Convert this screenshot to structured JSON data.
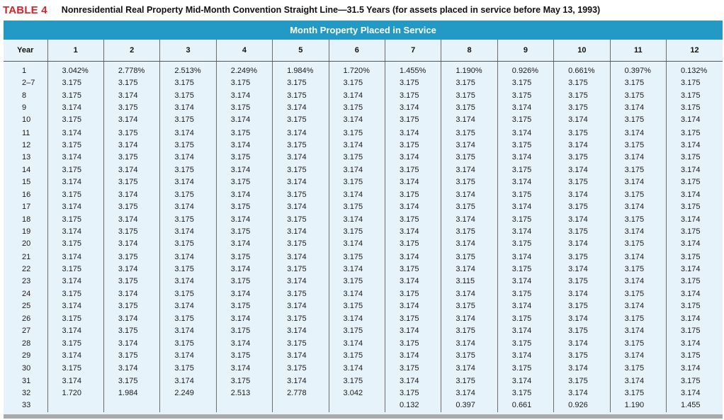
{
  "header": {
    "table_label": "TABLE 4",
    "title": "Nonresidential Real Property Mid-Month Convention Straight Line—31.5 Years (for assets placed in service before May 13, 1993)"
  },
  "table": {
    "group_header": "Month Property Placed in Service",
    "year_header": "Year",
    "columns": [
      "1",
      "2",
      "3",
      "4",
      "5",
      "6",
      "7",
      "8",
      "9",
      "10",
      "11",
      "12"
    ],
    "rows": [
      {
        "year": "1",
        "values": [
          "3.042%",
          "2.778%",
          "2.513%",
          "2.249%",
          "1.984%",
          "1.720%",
          "1.455%",
          "1.190%",
          "0.926%",
          "0.661%",
          "0.397%",
          "0.132%"
        ]
      },
      {
        "year": "2–7",
        "values": [
          "3.175",
          "3.175",
          "3.175",
          "3.175",
          "3.175",
          "3.175",
          "3.175",
          "3.175",
          "3.175",
          "3.175",
          "3.175",
          "3.175"
        ]
      },
      {
        "year": "8",
        "values": [
          "3.175",
          "3.174",
          "3.175",
          "3.174",
          "3.175",
          "3.174",
          "3.175",
          "3.175",
          "3.175",
          "3.175",
          "3.175",
          "3.175"
        ]
      },
      {
        "year": "9",
        "values": [
          "3.174",
          "3.175",
          "3.174",
          "3.175",
          "3.174",
          "3.175",
          "3.174",
          "3.175",
          "3.174",
          "3.175",
          "3.174",
          "3.175"
        ]
      },
      {
        "year": "10",
        "values": [
          "3.175",
          "3.174",
          "3.175",
          "3.174",
          "3.175",
          "3.174",
          "3.175",
          "3.174",
          "3.175",
          "3.174",
          "3.175",
          "3.174"
        ]
      },
      {
        "year": "11",
        "values": [
          "3.174",
          "3.175",
          "3.174",
          "3.175",
          "3.174",
          "3.175",
          "3.174",
          "3.175",
          "3.174",
          "3.175",
          "3.174",
          "3.175"
        ]
      },
      {
        "year": "12",
        "values": [
          "3.175",
          "3.174",
          "3.175",
          "3.174",
          "3.175",
          "3.174",
          "3.175",
          "3.174",
          "3.175",
          "3.174",
          "3.175",
          "3.174"
        ]
      },
      {
        "year": "13",
        "values": [
          "3.174",
          "3.175",
          "3.174",
          "3.175",
          "3.174",
          "3.175",
          "3.174",
          "3.175",
          "3.174",
          "3.175",
          "3.174",
          "3.175"
        ]
      },
      {
        "year": "14",
        "values": [
          "3.175",
          "3.174",
          "3.175",
          "3.174",
          "3.175",
          "3.174",
          "3.175",
          "3.174",
          "3.175",
          "3.174",
          "3.175",
          "3.174"
        ]
      },
      {
        "year": "15",
        "values": [
          "3.174",
          "3.175",
          "3.174",
          "3.175",
          "3.174",
          "3.175",
          "3.174",
          "3.175",
          "3.174",
          "3.175",
          "3.174",
          "3.175"
        ]
      },
      {
        "year": "16",
        "values": [
          "3.175",
          "3.174",
          "3.175",
          "3.174",
          "3.175",
          "3.174",
          "3.175",
          "3.174",
          "3.175",
          "3.174",
          "3.175",
          "3.174"
        ]
      },
      {
        "year": "17",
        "values": [
          "3.174",
          "3.175",
          "3.174",
          "3.175",
          "3.174",
          "3.175",
          "3.174",
          "3.175",
          "3.174",
          "3.175",
          "3.174",
          "3.175"
        ]
      },
      {
        "year": "18",
        "values": [
          "3.175",
          "3.174",
          "3.175",
          "3.174",
          "3.175",
          "3.174",
          "3.175",
          "3.174",
          "3.175",
          "3.174",
          "3.175",
          "3.174"
        ]
      },
      {
        "year": "19",
        "values": [
          "3.174",
          "3.175",
          "3.174",
          "3.175",
          "3.174",
          "3.175",
          "3.174",
          "3.175",
          "3.174",
          "3.175",
          "3.174",
          "3.175"
        ]
      },
      {
        "year": "20",
        "values": [
          "3.175",
          "3.174",
          "3.175",
          "3.174",
          "3.175",
          "3.174",
          "3.175",
          "3.174",
          "3.175",
          "3.174",
          "3.175",
          "3.174"
        ]
      },
      {
        "year": "21",
        "values": [
          "3.174",
          "3.175",
          "3.174",
          "3.175",
          "3.174",
          "3.175",
          "3.174",
          "3.175",
          "3.174",
          "3.175",
          "3.174",
          "3.175"
        ]
      },
      {
        "year": "22",
        "values": [
          "3.175",
          "3.174",
          "3.175",
          "3.174",
          "3.175",
          "3.174",
          "3.175",
          "3.174",
          "3.175",
          "3.174",
          "3.175",
          "3.174"
        ]
      },
      {
        "year": "23",
        "values": [
          "3.174",
          "3.175",
          "3.174",
          "3.175",
          "3.174",
          "3.175",
          "3.174",
          "3.115",
          "3.174",
          "3.175",
          "3.174",
          "3.175"
        ]
      },
      {
        "year": "24",
        "values": [
          "3.175",
          "3.174",
          "3.175",
          "3.174",
          "3.175",
          "3.174",
          "3.175",
          "3.174",
          "3.175",
          "3.174",
          "3.175",
          "3.174"
        ]
      },
      {
        "year": "25",
        "values": [
          "3.174",
          "3.175",
          "3.174",
          "3.175",
          "3.174",
          "3.175",
          "3.174",
          "3.175",
          "3.174",
          "3.175",
          "3.174",
          "3.175"
        ]
      },
      {
        "year": "26",
        "values": [
          "3.175",
          "3.174",
          "3.175",
          "3.174",
          "3.175",
          "3.174",
          "3.175",
          "3.174",
          "3.175",
          "3.174",
          "3.175",
          "3.174"
        ]
      },
      {
        "year": "27",
        "values": [
          "3.174",
          "3.175",
          "3.174",
          "3.175",
          "3.174",
          "3.175",
          "3.174",
          "3.175",
          "3.174",
          "3.175",
          "3.174",
          "3.175"
        ]
      },
      {
        "year": "28",
        "values": [
          "3.175",
          "3.174",
          "3.175",
          "3.174",
          "3.175",
          "3.174",
          "3.175",
          "3.174",
          "3.175",
          "3.174",
          "3.175",
          "3.174"
        ]
      },
      {
        "year": "29",
        "values": [
          "3.174",
          "3.175",
          "3.174",
          "3.175",
          "3.174",
          "3.175",
          "3.174",
          "3.175",
          "3.174",
          "3.175",
          "3.174",
          "3.175"
        ]
      },
      {
        "year": "30",
        "values": [
          "3.175",
          "3.174",
          "3.175",
          "3.174",
          "3.175",
          "3.174",
          "3.175",
          "3.174",
          "3.175",
          "3.174",
          "3.175",
          "3.174"
        ]
      },
      {
        "year": "31",
        "values": [
          "3.174",
          "3.175",
          "3.174",
          "3.175",
          "3.174",
          "3.175",
          "3.174",
          "3.175",
          "3.174",
          "3.175",
          "3.174",
          "3.175"
        ]
      },
      {
        "year": "32",
        "values": [
          "1.720",
          "1.984",
          "2.249",
          "2.513",
          "2.778",
          "3.042",
          "3.175",
          "3.174",
          "3.175",
          "3.174",
          "3.175",
          "3.174"
        ]
      },
      {
        "year": "33",
        "values": [
          "",
          "",
          "",
          "",
          "",
          "",
          "0.132",
          "0.397",
          "0.661",
          "0.926",
          "1.190",
          "1.455"
        ]
      }
    ]
  },
  "colors": {
    "label_red": "#d2232a",
    "header_blue": "#2399c6",
    "panel_bg": "#e7f3fa",
    "bottom_rule": "#a7a9ac"
  }
}
